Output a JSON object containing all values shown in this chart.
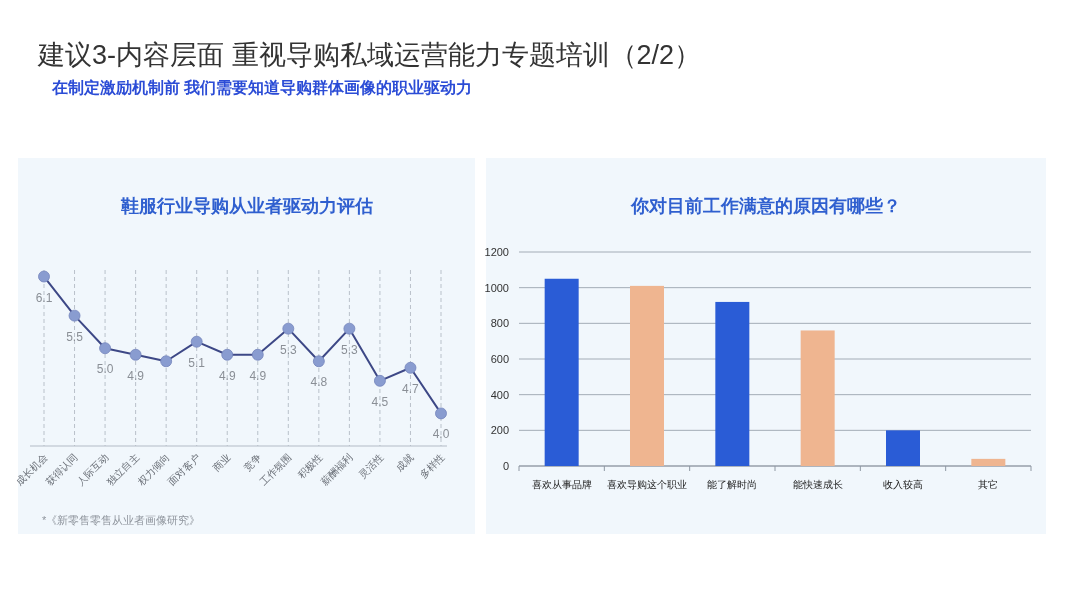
{
  "chart_data": [
    {
      "type": "other",
      "title": "建议3-内容层面 重视导购私域运营能力专题培训（2/2）",
      "subtitle": "在制定激励机制前 我们需要知道导购群体画像的职业驱动力"
    },
    {
      "type": "line",
      "title": "鞋服行业导购从业者驱动力评估",
      "categories": [
        "成长机会",
        "获得认同",
        "人际互动",
        "独立自主",
        "权力倾向",
        "面对客户",
        "商业",
        "竞争",
        "工作氛围",
        "积极性",
        "薪酬福利",
        "灵活性",
        "成就",
        "多样性"
      ],
      "values": [
        6.1,
        5.5,
        5.0,
        4.9,
        4.8,
        5.1,
        4.9,
        4.9,
        5.3,
        4.8,
        5.3,
        4.5,
        4.7,
        4.0
      ],
      "value_labels": [
        "6.1",
        "5.5",
        "5.0",
        "4.9",
        null,
        "5.1",
        "4.9",
        "4.9",
        "5.3",
        "4.8",
        "5.3",
        "4.5",
        "4.7",
        "4.0"
      ],
      "color": "#3d4886",
      "marker": "circle",
      "line_style": "solid",
      "ylim": [
        3.5,
        6.2
      ],
      "tick_labels": "x",
      "grid": "x",
      "annotations": [
        "*《新零售零售从业者画像研究》"
      ]
    },
    {
      "type": "bar",
      "title": "你对目前工作满意的原因有哪些？",
      "categories": [
        "喜欢从事品牌",
        "喜欢导购这个职业",
        "能了解时尚",
        "能快速成长",
        "收入较高",
        "其它"
      ],
      "values": [
        1050,
        1010,
        920,
        760,
        200,
        40
      ],
      "colors": [
        "#2a5cd6",
        "#efb590",
        "#2a5cd6",
        "#efb590",
        "#2a5cd6",
        "#efb590"
      ],
      "ylim": [
        0,
        1200
      ],
      "yticks": [
        0,
        200,
        400,
        600,
        800,
        1000,
        1200
      ],
      "grid": "y"
    }
  ]
}
